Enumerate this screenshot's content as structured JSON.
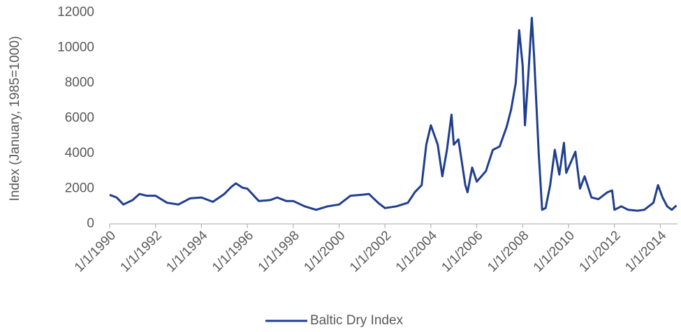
{
  "chart_data": {
    "type": "line",
    "y_label": "Index (January, 1985=1000)",
    "xlim": [
      1990,
      2014.75
    ],
    "ylim": [
      0,
      12000
    ],
    "yticks": [
      0,
      2000,
      4000,
      6000,
      8000,
      10000,
      12000
    ],
    "xticks": [
      {
        "value": 1990,
        "label": "1/1/1990"
      },
      {
        "value": 1992,
        "label": "1/1/1992"
      },
      {
        "value": 1994,
        "label": "1/1/1994"
      },
      {
        "value": 1996,
        "label": "1/1/1996"
      },
      {
        "value": 1998,
        "label": "1/1/1998"
      },
      {
        "value": 2000,
        "label": "1/1/2000"
      },
      {
        "value": 2002,
        "label": "1/1/2002"
      },
      {
        "value": 2004,
        "label": "1/1/2004"
      },
      {
        "value": 2006,
        "label": "1/1/2006"
      },
      {
        "value": 2008,
        "label": "1/1/2008"
      },
      {
        "value": 2010,
        "label": "1/1/2010"
      },
      {
        "value": 2012,
        "label": "1/1/2012"
      },
      {
        "value": 2014,
        "label": "1/1/2014"
      }
    ],
    "grid": false,
    "legend": "bottom",
    "x": [
      1990,
      1990.3,
      1990.6,
      1991,
      1991.3,
      1991.6,
      1992,
      1992.5,
      1993,
      1993.5,
      1994,
      1994.5,
      1995,
      1995.3,
      1995.5,
      1995.8,
      1996,
      1996.5,
      1997,
      1997.3,
      1997.7,
      1998,
      1998.5,
      1999,
      1999.5,
      2000,
      2000.5,
      2001,
      2001.3,
      2001.7,
      2002,
      2002.5,
      2003,
      2003.3,
      2003.6,
      2003.8,
      2004,
      2004.3,
      2004.5,
      2004.7,
      2004.9,
      2005,
      2005.2,
      2005.5,
      2005.6,
      2005.8,
      2006,
      2006.4,
      2006.7,
      2007,
      2007.3,
      2007.5,
      2007.7,
      2007.85,
      2008,
      2008.1,
      2008.25,
      2008.4,
      2008.5,
      2008.7,
      2008.85,
      2009,
      2009.2,
      2009.4,
      2009.6,
      2009.8,
      2009.9,
      2010,
      2010.3,
      2010.5,
      2010.7,
      2011,
      2011.3,
      2011.7,
      2011.9,
      2012,
      2012.3,
      2012.6,
      2013,
      2013.3,
      2013.7,
      2013.9,
      2014.1,
      2014.3,
      2014.5,
      2014.7
    ],
    "series": [
      {
        "name": "Baltic Dry Index",
        "color": "#1f3e8f",
        "values": [
          1650,
          1500,
          1100,
          1350,
          1700,
          1600,
          1600,
          1200,
          1100,
          1450,
          1500,
          1250,
          1700,
          2100,
          2300,
          2050,
          2000,
          1300,
          1350,
          1500,
          1300,
          1300,
          1000,
          800,
          1000,
          1100,
          1600,
          1650,
          1700,
          1200,
          900,
          1000,
          1200,
          1800,
          2200,
          4500,
          5600,
          4500,
          2700,
          4200,
          6200,
          4500,
          4800,
          2200,
          1800,
          3200,
          2400,
          3000,
          4200,
          4400,
          5500,
          6500,
          8000,
          11000,
          9000,
          5600,
          8500,
          11700,
          9500,
          4000,
          800,
          900,
          2200,
          4200,
          2800,
          4600,
          2900,
          3200,
          4100,
          2000,
          2700,
          1500,
          1400,
          1800,
          1900,
          800,
          1000,
          800,
          750,
          800,
          1200,
          2200,
          1500,
          1000,
          800,
          1050
        ]
      }
    ]
  }
}
